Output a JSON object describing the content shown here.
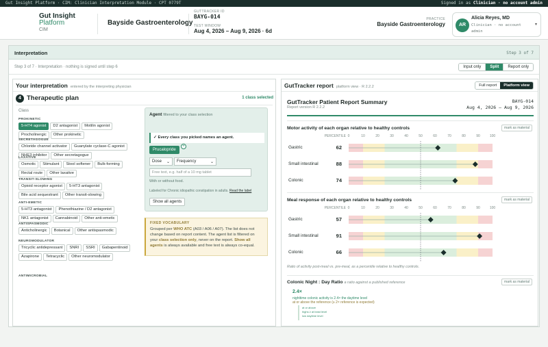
{
  "topbar": {
    "left": "Gut Insight Platform · CIM: Clinician Interpretation Module · CPT 0779T",
    "right_prefix": "Signed in as ",
    "right_bold": "Clinician · no account admin"
  },
  "brand": {
    "line1": "Gut Insight",
    "line2": "Platform",
    "line3": "CIM"
  },
  "site": "Bayside Gastroenterology",
  "tracker": {
    "label": "GUTTRACKER ID",
    "value": "BAYG-014"
  },
  "window": {
    "label": "TEST WINDOW",
    "value": "Aug 4, 2026 – Aug 9, 2026 · 6d"
  },
  "practice": {
    "label": "PRACTICE",
    "value": "Bayside Gastroenterology"
  },
  "user": {
    "initials": "AR",
    "name": "Alicia Reyes, MD",
    "role": "Clinician · no account admin"
  },
  "shell": {
    "title": "Interpretation",
    "step": "Step 3 of 7",
    "subtitle": "Step 3 of 7 · Interpretation · nothing is signed until step 6",
    "views": [
      "Input only",
      "Split",
      "Report only"
    ],
    "active_view": "Split"
  },
  "left": {
    "title": "Your interpretation",
    "subtitle": "entered by the interpreting physician",
    "step_no": "4",
    "plan_title": "Therapeutic plan",
    "count": "1 class selected",
    "class_label": "Class",
    "groups": [
      {
        "label": "PROKINETIC",
        "items": [
          "5-HT4 agonist",
          "D2 antagonist",
          "Motilin agonist",
          "Procholinergic",
          "Other prokinetic"
        ],
        "selected": "5-HT4 agonist"
      },
      {
        "label": "SECRETAGOGUE",
        "items": [
          "Chloride channel activator",
          "Guanylate cyclase-C agonist",
          "NHE3 inhibitor",
          "Other secretagogue"
        ]
      },
      {
        "label": "LAXATIVE",
        "items": [
          "Osmotic",
          "Stimulant",
          "Stool softener",
          "Bulk-forming",
          "Rectal route",
          "Other laxative"
        ]
      },
      {
        "label": "TRANSIT-SLOWING",
        "items": [
          "Opioid receptor agonist",
          "5-HT3 antagonist",
          "Bile acid sequestrant",
          "Other transit-slowing"
        ]
      },
      {
        "label": "ANTI-EMETIC",
        "items": [
          "5-HT3 antagonist",
          "Phenothiazine / D2 antagonist",
          "NK1 antagonist",
          "Cannabinoid",
          "Other anti-emetic"
        ]
      },
      {
        "label": "ANTISPASMODIC",
        "items": [
          "Anticholinergic",
          "Botanical",
          "Other antispasmodic"
        ]
      },
      {
        "label": "NEUROMODULATOR",
        "items": [
          "Tricyclic antidepressant",
          "SNRI",
          "SSRI",
          "Gabapentinoid",
          "Azapirone",
          "Tetracyclic",
          "Other neuromodulator"
        ]
      },
      {
        "label": "ANTIMICROBIAL",
        "items": []
      }
    ],
    "agent": {
      "title": "Agent",
      "title_note": "filtered to your class selection",
      "ok": "✓ Every class you picked names an agent.",
      "chosen": "Prucalopride",
      "dose": "Dose",
      "frequency": "Frequency",
      "free_placeholder": "Free text, e.g. half of a 10 mg tablet",
      "note1": "With or without food.",
      "note2": "Labeled for Chronic idiopathic constipation in adults.",
      "note2_link": "Read the label",
      "all_btn": "Show all agents"
    },
    "fixed": {
      "label": "FIXED VOCABULARY",
      "b1": "Grouped per ",
      "b1b": "WHO ATC",
      "b2": " (A03 / A06 / A07). The list does not change based on report content. The agent list is filtered on your ",
      "b2b": "class selection only",
      "b3": ", never on the report. ",
      "b3b": "Show all agents",
      "b4": " is always available and free text is always co-equal."
    }
  },
  "right": {
    "title": "GutTracker report",
    "subtitle": "platform view · R 2.2.2",
    "views": [
      "Full report",
      "Platform view"
    ],
    "active_view": "Platform view",
    "report_title": "GutTracker Patient Report Summary",
    "report_version": "Report version R 2.2.2",
    "report_id": "BAYG-014",
    "report_window": "Aug 4, 2026 – Aug 9, 2026",
    "mark": "mark as material",
    "pct_label": "PERCENTILE",
    "ticks": [
      "0",
      "10",
      "20",
      "30",
      "40",
      "50",
      "60",
      "70",
      "80",
      "90",
      "100"
    ],
    "sections": [
      {
        "title": "Motor activity of each organ relative to healthy controls",
        "rows": [
          {
            "label": "Gastric",
            "value": 62
          },
          {
            "label": "Small intestinal",
            "value": 88
          },
          {
            "label": "Colonic",
            "value": 74
          }
        ]
      },
      {
        "title": "Meal response of each organ relative to healthy controls",
        "rows": [
          {
            "label": "Gastric",
            "value": 57
          },
          {
            "label": "Small intestinal",
            "value": 91
          },
          {
            "label": "Colonic",
            "value": 66
          }
        ],
        "footnote": "Ratio of activity post-meal vs. pre-meal, as a percentile relative to healthy controls."
      }
    ],
    "night": {
      "title": "Colonic Night : Day Ratio",
      "subtitle": "a ratio against a published reference",
      "value": "2.4×",
      "l1": "nighttime colonic activity is 2.4× the daytime level",
      "l2": "at or above the reference (≥ 2× reference is expected)",
      "l3": "at or above",
      "l4": "highs ≥ at least level",
      "l5": "low daytime level"
    },
    "colors": {
      "accent": "#2f8a68",
      "red": "#f6d3d3",
      "yellow": "#faf0c8",
      "green": "#dbeedd"
    }
  }
}
